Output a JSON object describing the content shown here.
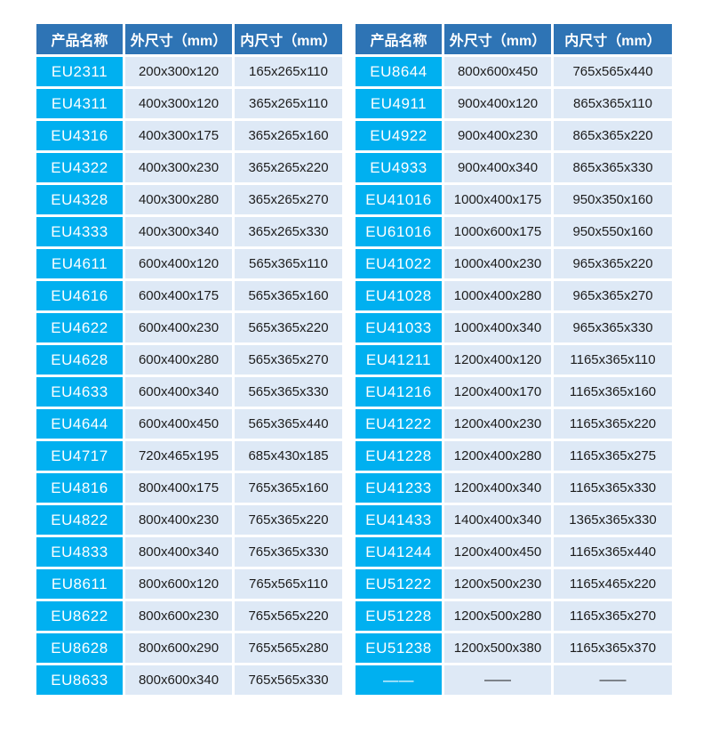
{
  "colors": {
    "header_bg": "#2E74B5",
    "header_text": "#FFFFFF",
    "product_bg": "#00B0F0",
    "product_text": "#FFFFFF",
    "cell_bg": "#DEE9F6",
    "cell_text": "#1D1D1D",
    "cell_border": "#FFFFFF",
    "page_bg": "#FFFFFF"
  },
  "tables": [
    {
      "headers": [
        "产品名称",
        "外尺寸（mm）",
        "内尺寸（mm）"
      ],
      "rows": [
        [
          "EU2311",
          "200x300x120",
          "165x265x110"
        ],
        [
          "EU4311",
          "400x300x120",
          "365x265x110"
        ],
        [
          "EU4316",
          "400x300x175",
          "365x265x160"
        ],
        [
          "EU4322",
          "400x300x230",
          "365x265x220"
        ],
        [
          "EU4328",
          "400x300x280",
          "365x265x270"
        ],
        [
          "EU4333",
          "400x300x340",
          "365x265x330"
        ],
        [
          "EU4611",
          "600x400x120",
          "565x365x110"
        ],
        [
          "EU4616",
          "600x400x175",
          "565x365x160"
        ],
        [
          "EU4622",
          "600x400x230",
          "565x365x220"
        ],
        [
          "EU4628",
          "600x400x280",
          "565x365x270"
        ],
        [
          "EU4633",
          "600x400x340",
          "565x365x330"
        ],
        [
          "EU4644",
          "600x400x450",
          "565x365x440"
        ],
        [
          "EU4717",
          "720x465x195",
          "685x430x185"
        ],
        [
          "EU4816",
          "800x400x175",
          "765x365x160"
        ],
        [
          "EU4822",
          "800x400x230",
          "765x365x220"
        ],
        [
          "EU4833",
          "800x400x340",
          "765x365x330"
        ],
        [
          "EU8611",
          "800x600x120",
          "765x565x110"
        ],
        [
          "EU8622",
          "800x600x230",
          "765x565x220"
        ],
        [
          "EU8628",
          "800x600x290",
          "765x565x280"
        ],
        [
          "EU8633",
          "800x600x340",
          "765x565x330"
        ]
      ]
    },
    {
      "headers": [
        "产品名称",
        "外尺寸（mm）",
        "内尺寸（mm）"
      ],
      "rows": [
        [
          "EU8644",
          "800x600x450",
          "765x565x440"
        ],
        [
          "EU4911",
          "900x400x120",
          "865x365x110"
        ],
        [
          "EU4922",
          "900x400x230",
          "865x365x220"
        ],
        [
          "EU4933",
          "900x400x340",
          "865x365x330"
        ],
        [
          "EU41016",
          "1000x400x175",
          "950x350x160"
        ],
        [
          "EU61016",
          "1000x600x175",
          "950x550x160"
        ],
        [
          "EU41022",
          "1000x400x230",
          "965x365x220"
        ],
        [
          "EU41028",
          "1000x400x280",
          "965x365x270"
        ],
        [
          "EU41033",
          "1000x400x340",
          "965x365x330"
        ],
        [
          "EU41211",
          "1200x400x120",
          "1165x365x110"
        ],
        [
          "EU41216",
          "1200x400x170",
          "1165x365x160"
        ],
        [
          "EU41222",
          "1200x400x230",
          "1165x365x220"
        ],
        [
          "EU41228",
          "1200x400x280",
          "1165x365x275"
        ],
        [
          "EU41233",
          "1200x400x340",
          "1165x365x330"
        ],
        [
          "EU41433",
          "1400x400x340",
          "1365x365x330"
        ],
        [
          "EU41244",
          "1200x400x450",
          "1165x365x440"
        ],
        [
          "EU51222",
          "1200x500x230",
          "1165x465x220"
        ],
        [
          "EU51228",
          "1200x500x280",
          "1165x365x270"
        ],
        [
          "EU51238",
          "1200x500x380",
          "1165x365x370"
        ],
        [
          "——",
          "——",
          "——"
        ]
      ]
    }
  ]
}
